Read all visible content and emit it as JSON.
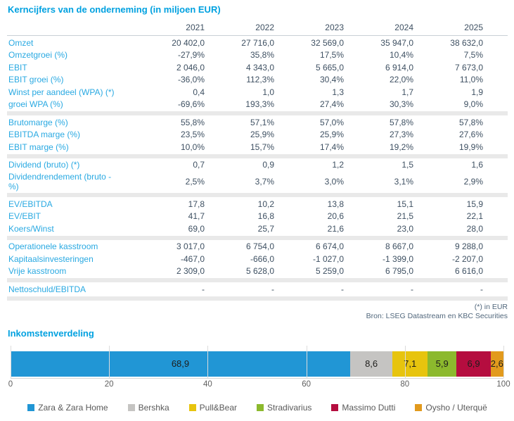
{
  "colors": {
    "accent_blue": "#00a1e0",
    "row_label_blue": "#29a9e2",
    "value_dark": "#3e5062",
    "separator_gray": "#e9e9e9"
  },
  "table": {
    "title": "Kerncijfers van de onderneming (in miljoen EUR)",
    "years": [
      "2021",
      "2022",
      "2023",
      "2024",
      "2025"
    ],
    "sections": [
      {
        "rows": [
          {
            "label": "Omzet",
            "values": [
              "20 402,0",
              "27 716,0",
              "32 569,0",
              "35 947,0",
              "38 632,0"
            ]
          },
          {
            "label": "Omzetgroei (%)",
            "values": [
              "-27,9%",
              "35,8%",
              "17,5%",
              "10,4%",
              "7,5%"
            ]
          },
          {
            "label": "EBIT",
            "values": [
              "2 046,0",
              "4 343,0",
              "5 665,0",
              "6 914,0",
              "7 673,0"
            ]
          },
          {
            "label": "EBIT groei (%)",
            "values": [
              "-36,0%",
              "112,3%",
              "30,4%",
              "22,0%",
              "11,0%"
            ]
          },
          {
            "label": "Winst per aandeel (WPA) (*)",
            "values": [
              "0,4",
              "1,0",
              "1,3",
              "1,7",
              "1,9"
            ]
          },
          {
            "label": "groei WPA (%)",
            "values": [
              "-69,6%",
              "193,3%",
              "27,4%",
              "30,3%",
              "9,0%"
            ]
          }
        ]
      },
      {
        "rows": [
          {
            "label": "Brutomarge (%)",
            "values": [
              "55,8%",
              "57,1%",
              "57,0%",
              "57,8%",
              "57,8%"
            ]
          },
          {
            "label": "EBITDA marge (%)",
            "values": [
              "23,5%",
              "25,9%",
              "25,9%",
              "27,3%",
              "27,6%"
            ]
          },
          {
            "label": "EBIT marge (%)",
            "values": [
              "10,0%",
              "15,7%",
              "17,4%",
              "19,2%",
              "19,9%"
            ]
          }
        ]
      },
      {
        "rows": [
          {
            "label": "Dividend (bruto) (*)",
            "values": [
              "0,7",
              "0,9",
              "1,2",
              "1,5",
              "1,6"
            ]
          },
          {
            "label": "Dividendrendement (bruto - %)",
            "tall": true,
            "values": [
              "2,5%",
              "3,7%",
              "3,0%",
              "3,1%",
              "2,9%"
            ]
          }
        ]
      },
      {
        "rows": [
          {
            "label": "EV/EBITDA",
            "values": [
              "17,8",
              "10,2",
              "13,8",
              "15,1",
              "15,9"
            ]
          },
          {
            "label": "EV/EBIT",
            "values": [
              "41,7",
              "16,8",
              "20,6",
              "21,5",
              "22,1"
            ]
          },
          {
            "label": "Koers/Winst",
            "values": [
              "69,0",
              "25,7",
              "21,6",
              "23,0",
              "28,0"
            ]
          }
        ]
      },
      {
        "rows": [
          {
            "label": "Operationele kasstroom",
            "values": [
              "3 017,0",
              "6 754,0",
              "6 674,0",
              "8 667,0",
              "9 288,0"
            ]
          },
          {
            "label": "Kapitaalsinvesteringen",
            "values": [
              "-467,0",
              "-666,0",
              "-1 027,0",
              "-1 399,0",
              "-2 207,0"
            ]
          },
          {
            "label": "Vrije kasstroom",
            "values": [
              "2 309,0",
              "5 628,0",
              "5 259,0",
              "6 795,0",
              "6 616,0"
            ]
          }
        ]
      },
      {
        "rows": [
          {
            "label": "Nettoschuld/EBITDA",
            "values": [
              "-",
              "-",
              "-",
              "-",
              "-"
            ]
          }
        ]
      }
    ],
    "footnotes": [
      "(*) in EUR",
      "Bron: LSEG Datastream en KBC Securities"
    ]
  },
  "chart_data": {
    "type": "bar",
    "stacked": true,
    "orientation": "horizontal",
    "title": "Inkomstenverdeling",
    "series": [
      {
        "name": "Zara & Zara Home",
        "value": 68.9,
        "display": "68,9",
        "color": "#2196d5"
      },
      {
        "name": "Bershka",
        "value": 8.6,
        "display": "8,6",
        "color": "#c5c4c2"
      },
      {
        "name": "Pull&Bear",
        "value": 7.1,
        "display": "7,1",
        "color": "#e7c40e"
      },
      {
        "name": "Stradivarius",
        "value": 5.9,
        "display": "5,9",
        "color": "#8cb92d"
      },
      {
        "name": "Massimo Dutti",
        "value": 6.9,
        "display": "6,9",
        "color": "#b50d3f"
      },
      {
        "name": "Oysho / Uterquë",
        "value": 2.6,
        "display": "2,6",
        "color": "#e29a1d"
      }
    ],
    "xlim": [
      0,
      100
    ],
    "xticks": [
      0,
      20,
      40,
      60,
      80,
      100
    ],
    "grid": true,
    "legend_position": "bottom"
  }
}
